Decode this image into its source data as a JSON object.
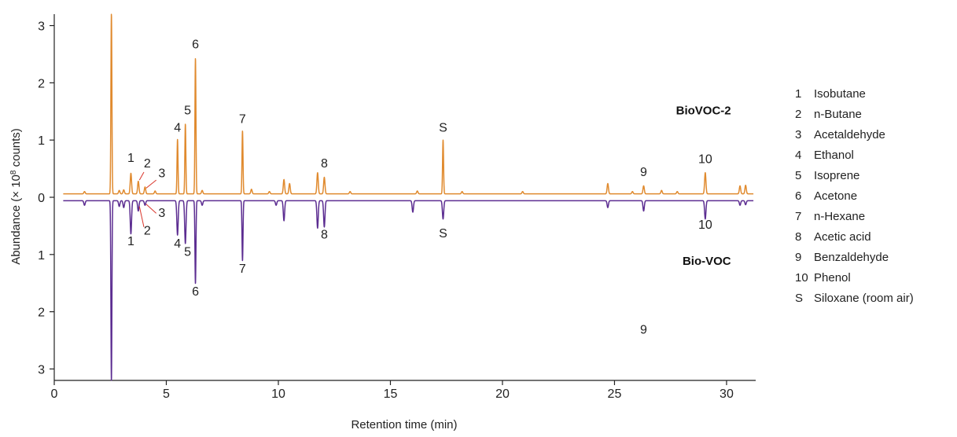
{
  "chart_data": {
    "type": "line",
    "title": "",
    "xlabel": "Retention time (min)",
    "ylabel_prefix": "Abundance (× 10",
    "ylabel_exp": "8",
    "ylabel_suffix": " counts)",
    "xlim": [
      0,
      31.3
    ],
    "xticks": [
      0,
      5,
      10,
      15,
      20,
      25,
      30
    ],
    "ylim": [
      -3.2,
      3.2
    ],
    "yticks": [
      {
        "value": 3,
        "label": "3"
      },
      {
        "value": 2,
        "label": "2"
      },
      {
        "value": 1,
        "label": "1"
      },
      {
        "value": 0,
        "label": "0"
      },
      {
        "value": -1,
        "label": "1"
      },
      {
        "value": -2,
        "label": "2"
      },
      {
        "value": -3,
        "label": "3"
      }
    ],
    "series": [
      {
        "name": "BioVOC-2",
        "color": "#e08a2e",
        "baseline": 0.06,
        "peaks": [
          {
            "x": 1.35,
            "h": 0.04
          },
          {
            "x": 2.55,
            "h": 3.15
          },
          {
            "x": 2.9,
            "h": 0.06
          },
          {
            "x": 3.1,
            "h": 0.07
          },
          {
            "x": 3.42,
            "h": 0.36
          },
          {
            "x": 3.75,
            "h": 0.22
          },
          {
            "x": 4.05,
            "h": 0.12
          },
          {
            "x": 4.5,
            "h": 0.05
          },
          {
            "x": 5.5,
            "h": 0.95
          },
          {
            "x": 5.85,
            "h": 1.22
          },
          {
            "x": 6.3,
            "h": 2.37
          },
          {
            "x": 6.6,
            "h": 0.06
          },
          {
            "x": 8.4,
            "h": 1.1
          },
          {
            "x": 8.8,
            "h": 0.08
          },
          {
            "x": 9.6,
            "h": 0.04
          },
          {
            "x": 10.25,
            "h": 0.25
          },
          {
            "x": 10.5,
            "h": 0.18
          },
          {
            "x": 11.75,
            "h": 0.37
          },
          {
            "x": 12.05,
            "h": 0.29
          },
          {
            "x": 13.2,
            "h": 0.04
          },
          {
            "x": 16.2,
            "h": 0.05
          },
          {
            "x": 17.35,
            "h": 0.94
          },
          {
            "x": 18.2,
            "h": 0.04
          },
          {
            "x": 20.9,
            "h": 0.04
          },
          {
            "x": 24.7,
            "h": 0.18
          },
          {
            "x": 25.8,
            "h": 0.04
          },
          {
            "x": 26.3,
            "h": 0.14
          },
          {
            "x": 27.1,
            "h": 0.06
          },
          {
            "x": 27.8,
            "h": 0.04
          },
          {
            "x": 29.05,
            "h": 0.37
          },
          {
            "x": 30.6,
            "h": 0.14
          },
          {
            "x": 30.85,
            "h": 0.15
          }
        ]
      },
      {
        "name": "Bio-VOC",
        "color": "#5c2d91",
        "baseline": -0.06,
        "peaks": [
          {
            "x": 1.35,
            "h": 0.08
          },
          {
            "x": 2.55,
            "h": 3.15
          },
          {
            "x": 2.9,
            "h": 0.1
          },
          {
            "x": 3.1,
            "h": 0.12
          },
          {
            "x": 3.42,
            "h": 0.58
          },
          {
            "x": 3.75,
            "h": 0.18
          },
          {
            "x": 4.05,
            "h": 0.08
          },
          {
            "x": 5.5,
            "h": 0.6
          },
          {
            "x": 5.85,
            "h": 0.75
          },
          {
            "x": 6.3,
            "h": 1.45
          },
          {
            "x": 6.6,
            "h": 0.08
          },
          {
            "x": 8.4,
            "h": 1.05
          },
          {
            "x": 9.9,
            "h": 0.08
          },
          {
            "x": 10.25,
            "h": 0.35
          },
          {
            "x": 11.75,
            "h": 0.48
          },
          {
            "x": 12.05,
            "h": 0.46
          },
          {
            "x": 16.0,
            "h": 0.2
          },
          {
            "x": 17.35,
            "h": 0.32
          },
          {
            "x": 24.7,
            "h": 0.12
          },
          {
            "x": 26.3,
            "h": 0.18
          },
          {
            "x": 29.05,
            "h": 0.32
          },
          {
            "x": 30.6,
            "h": 0.08
          },
          {
            "x": 30.85,
            "h": 0.07
          }
        ]
      }
    ],
    "series_labels": [
      {
        "text": "BioVOC-2",
        "x": 30.2,
        "y": 1.45
      },
      {
        "text": "Bio-VOC",
        "x": 30.2,
        "y": -1.18
      }
    ],
    "peak_labels_top": [
      {
        "text": "1",
        "x": 3.42,
        "y": 0.62
      },
      {
        "text": "2",
        "x": 4.15,
        "y": 0.52
      },
      {
        "text": "3",
        "x": 4.8,
        "y": 0.35
      },
      {
        "text": "4",
        "x": 5.5,
        "y": 1.15
      },
      {
        "text": "5",
        "x": 5.95,
        "y": 1.45
      },
      {
        "text": "6",
        "x": 6.3,
        "y": 2.6
      },
      {
        "text": "7",
        "x": 8.4,
        "y": 1.3
      },
      {
        "text": "8",
        "x": 12.05,
        "y": 0.52
      },
      {
        "text": "S",
        "x": 17.35,
        "y": 1.15
      },
      {
        "text": "9",
        "x": 26.3,
        "y": 0.37
      },
      {
        "text": "10",
        "x": 29.05,
        "y": 0.6
      }
    ],
    "peak_labels_bottom": [
      {
        "text": "3",
        "x": 4.8,
        "y": -0.34
      },
      {
        "text": "2",
        "x": 4.15,
        "y": -0.65
      },
      {
        "text": "1",
        "x": 3.42,
        "y": -0.84
      },
      {
        "text": "4",
        "x": 5.5,
        "y": -0.88
      },
      {
        "text": "5",
        "x": 5.95,
        "y": -1.02
      },
      {
        "text": "6",
        "x": 6.3,
        "y": -1.72
      },
      {
        "text": "7",
        "x": 8.4,
        "y": -1.32
      },
      {
        "text": "8",
        "x": 12.05,
        "y": -0.72
      },
      {
        "text": "S",
        "x": 17.35,
        "y": -0.7
      },
      {
        "text": "10",
        "x": 29.05,
        "y": -0.55
      },
      {
        "text": "9",
        "x": 26.3,
        "y": -2.38
      }
    ],
    "leaders": [
      {
        "series": "top",
        "x1": 3.8,
        "y1": 0.3,
        "x2": 4.0,
        "y2": 0.44
      },
      {
        "series": "top",
        "x1": 4.1,
        "y1": 0.16,
        "x2": 4.55,
        "y2": 0.3
      },
      {
        "series": "bottom",
        "x1": 3.8,
        "y1": -0.16,
        "x2": 4.0,
        "y2": -0.52
      },
      {
        "series": "bottom",
        "x1": 4.1,
        "y1": -0.12,
        "x2": 4.55,
        "y2": -0.28
      }
    ],
    "leader_color": "#d9352b",
    "legend": [
      {
        "key": "1",
        "label": "Isobutane"
      },
      {
        "key": "2",
        "label": "n-Butane"
      },
      {
        "key": "3",
        "label": "Acetaldehyde"
      },
      {
        "key": "4",
        "label": "Ethanol"
      },
      {
        "key": "5",
        "label": "Isoprene"
      },
      {
        "key": "6",
        "label": "Acetone"
      },
      {
        "key": "7",
        "label": "n-Hexane"
      },
      {
        "key": "8",
        "label": "Acetic acid"
      },
      {
        "key": "9",
        "label": "Benzaldehyde"
      },
      {
        "key": "10",
        "label": "Phenol"
      },
      {
        "key": "S",
        "label": "Siloxane (room air)"
      }
    ],
    "grid": false,
    "legend_position": "right"
  }
}
